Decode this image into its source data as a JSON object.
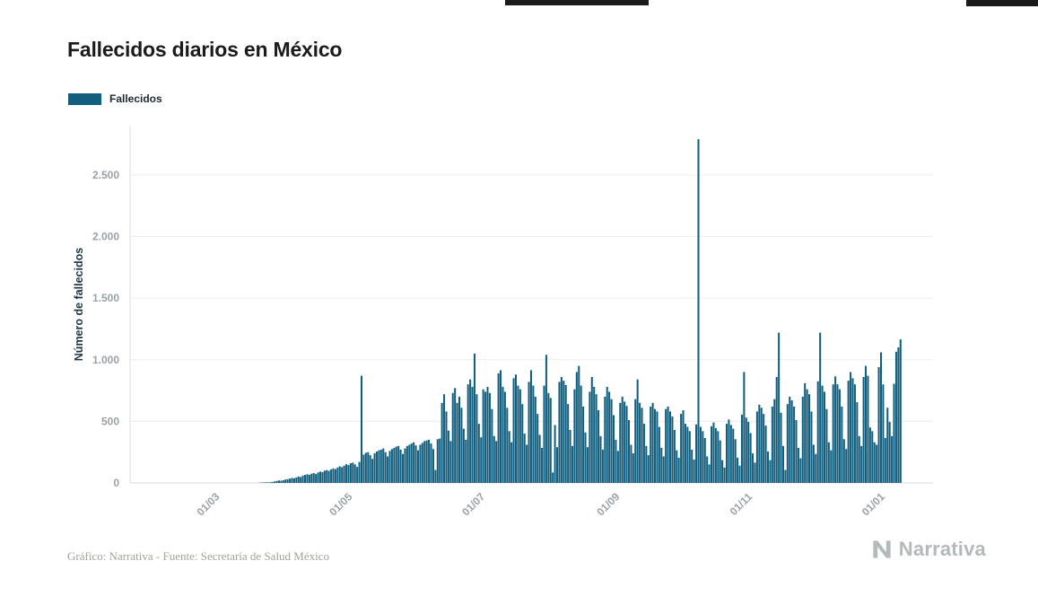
{
  "header": {
    "title": "Fallecidos diarios en México",
    "legend_label": "Fallecidos"
  },
  "footer": {
    "credit": "Gráfico: Narrativa - Fuente: Secretaría de Salud México",
    "brand": "Narrativa"
  },
  "colors": {
    "bar": "#115e7e",
    "grid": "#ececec",
    "axis_line": "#dcdcdc",
    "axis_text": "#9aa2a8",
    "title_text": "#1b1b1b",
    "brand_gray": "#b4b9bc"
  },
  "chart_data": {
    "type": "bar",
    "title": "Fallecidos diarios en México",
    "xlabel": "",
    "ylabel": "Número de fallecidos",
    "legend": [
      "Fallecidos"
    ],
    "legend_position": "top-left",
    "grid": true,
    "frequency": "daily",
    "start_date": "2020-01-20",
    "ylim": [
      0,
      2900
    ],
    "y_ticks": [
      {
        "value": 0,
        "label": "0"
      },
      {
        "value": 500,
        "label": "500"
      },
      {
        "value": 1000,
        "label": "1.000"
      },
      {
        "value": 1500,
        "label": "1.500"
      },
      {
        "value": 2000,
        "label": "2.000"
      },
      {
        "value": 2500,
        "label": "2.500"
      }
    ],
    "x_ticks": [
      {
        "index": 41,
        "label": "01/03"
      },
      {
        "index": 102,
        "label": "01/05"
      },
      {
        "index": 163,
        "label": "01/07"
      },
      {
        "index": 225,
        "label": "01/09"
      },
      {
        "index": 286,
        "label": "01/11"
      },
      {
        "index": 347,
        "label": "01/01"
      }
    ],
    "values": [
      0,
      0,
      0,
      0,
      0,
      0,
      0,
      0,
      0,
      0,
      0,
      0,
      0,
      0,
      0,
      0,
      0,
      0,
      0,
      0,
      0,
      0,
      0,
      0,
      0,
      0,
      0,
      0,
      0,
      0,
      0,
      0,
      0,
      0,
      0,
      0,
      0,
      0,
      0,
      0,
      0,
      0,
      0,
      0,
      0,
      0,
      0,
      0,
      0,
      0,
      0,
      0,
      0,
      0,
      0,
      0,
      0,
      0,
      0,
      2,
      3,
      4,
      5,
      4,
      6,
      8,
      12,
      16,
      20,
      18,
      22,
      28,
      30,
      35,
      40,
      38,
      45,
      52,
      48,
      60,
      65,
      70,
      66,
      75,
      80,
      72,
      85,
      92,
      88,
      100,
      105,
      98,
      110,
      118,
      112,
      125,
      135,
      128,
      140,
      152,
      145,
      160,
      165,
      150,
      130,
      170,
      870,
      230,
      245,
      250,
      225,
      195,
      240,
      255,
      265,
      270,
      280,
      250,
      215,
      260,
      275,
      285,
      295,
      300,
      270,
      235,
      280,
      300,
      310,
      320,
      330,
      305,
      265,
      310,
      325,
      340,
      345,
      350,
      320,
      275,
      105,
      355,
      360,
      650,
      720,
      580,
      425,
      340,
      730,
      770,
      650,
      700,
      610,
      440,
      350,
      800,
      840,
      780,
      1050,
      720,
      480,
      370,
      760,
      740,
      780,
      730,
      600,
      380,
      340,
      890,
      915,
      780,
      740,
      610,
      420,
      330,
      850,
      880,
      790,
      760,
      640,
      400,
      310,
      820,
      915,
      790,
      700,
      560,
      390,
      285,
      790,
      1040,
      730,
      690,
      85,
      470,
      290,
      820,
      860,
      830,
      795,
      640,
      430,
      300,
      760,
      900,
      950,
      790,
      620,
      410,
      290,
      740,
      860,
      780,
      720,
      590,
      380,
      270,
      700,
      780,
      740,
      680,
      550,
      350,
      260,
      650,
      700,
      660,
      625,
      510,
      310,
      240,
      680,
      840,
      650,
      610,
      480,
      300,
      225,
      620,
      650,
      600,
      580,
      455,
      285,
      215,
      600,
      620,
      580,
      540,
      430,
      265,
      205,
      560,
      590,
      480,
      455,
      420,
      270,
      190,
      475,
      2790,
      455,
      420,
      365,
      215,
      150,
      460,
      490,
      445,
      420,
      345,
      185,
      125,
      480,
      515,
      470,
      440,
      355,
      205,
      140,
      555,
      900,
      530,
      495,
      405,
      240,
      165,
      580,
      635,
      610,
      560,
      465,
      255,
      185,
      620,
      680,
      860,
      1220,
      570,
      300,
      105,
      640,
      700,
      670,
      620,
      510,
      285,
      200,
      700,
      810,
      760,
      720,
      580,
      310,
      235,
      825,
      1220,
      790,
      740,
      600,
      330,
      265,
      800,
      865,
      800,
      760,
      620,
      355,
      275,
      830,
      900,
      850,
      800,
      655,
      380,
      300,
      860,
      950,
      870,
      450,
      420,
      330,
      310,
      940,
      1060,
      800,
      365,
      610,
      495,
      380,
      805,
      1065,
      1100,
      1165
    ]
  }
}
